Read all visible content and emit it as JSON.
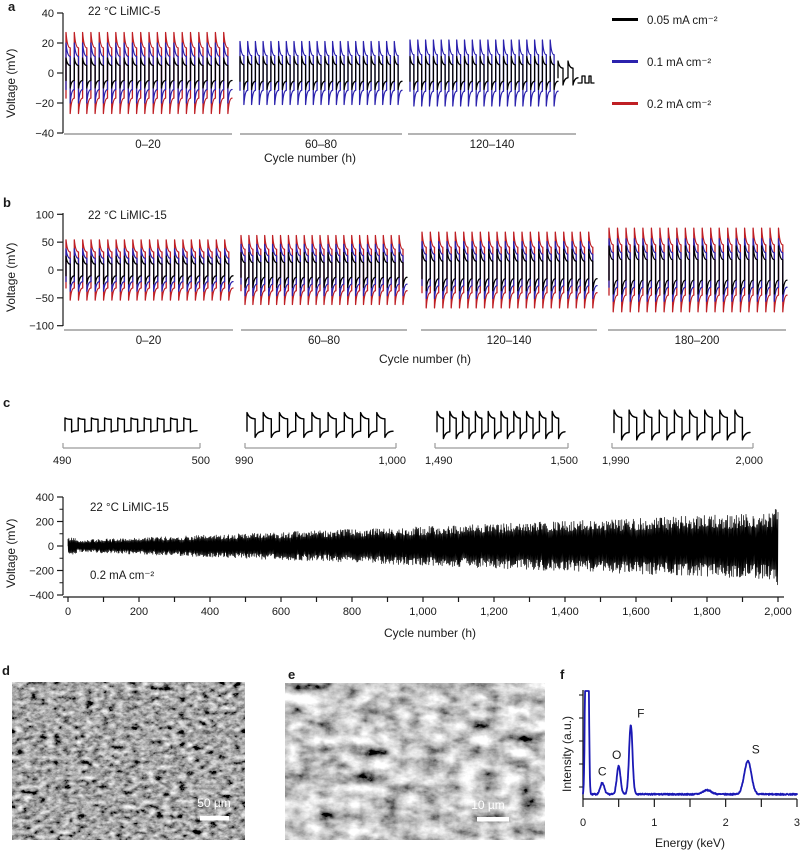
{
  "panels": {
    "a": {
      "letter": "a",
      "title": "22 °C LiMIC-5",
      "ylabel": "Voltage (mV)",
      "xlabel": "Cycle number (h)"
    },
    "b": {
      "letter": "b",
      "title": "22 °C LiMIC-15",
      "ylabel": "Voltage (mV)",
      "xlabel": "Cycle number (h)"
    },
    "c": {
      "letter": "c",
      "title": "22 °C LiMIC-15",
      "current_label": "0.2 mA cm⁻²",
      "ylabel": "Voltage (mV)",
      "xlabel": "Cycle number (h)"
    },
    "d": {
      "letter": "d",
      "scale_label": "50 µm"
    },
    "e": {
      "letter": "e",
      "scale_label": "10 µm"
    },
    "f": {
      "letter": "f",
      "ylabel": "Intensity (a.u.)",
      "xlabel": "Energy (keV)"
    }
  },
  "legend": {
    "items": [
      {
        "label": "0.05 mA cm⁻²",
        "color": "#000000"
      },
      {
        "label": "0.1 mA cm⁻²",
        "color": "#2b22ad"
      },
      {
        "label": "0.2 mA cm⁻²",
        "color": "#bf1f24"
      }
    ]
  },
  "colors": {
    "black": "#000000",
    "blue": "#2b22ad",
    "red": "#bf1f24",
    "eds_blue": "#1b19b5",
    "axis": "#1a1a1a",
    "segment_line": "#9b9b9b"
  },
  "chart_data": [
    {
      "id": "a",
      "type": "line",
      "title": "22 °C LiMIC-5",
      "xlabel": "Cycle number (h)",
      "ylabel": "Voltage (mV)",
      "ylim": [
        -40,
        40
      ],
      "yticks": [
        {
          "v": 40,
          "label": "40"
        },
        {
          "v": 20,
          "label": "20"
        },
        {
          "v": 0,
          "label": "0"
        },
        {
          "v": -20,
          "label": "−20"
        },
        {
          "v": -40,
          "label": "−40"
        }
      ],
      "segments": [
        {
          "label": "0–20",
          "cycles": 20,
          "series": [
            {
              "name": "0.2 mA cm⁻²",
              "color_key": "red",
              "amp_mV": 27,
              "relax": 0.62
            },
            {
              "name": "0.1 mA cm⁻²",
              "color_key": "blue",
              "amp_mV": 20,
              "relax": 0.55
            },
            {
              "name": "0.05 mA cm⁻²",
              "color_key": "black",
              "amp_mV": 10,
              "relax": 0.5
            }
          ]
        },
        {
          "label": "60–80",
          "cycles": 21,
          "series": [
            {
              "name": "0.1 mA cm⁻²",
              "color_key": "blue",
              "amp_mV": 21,
              "relax": 0.55
            },
            {
              "name": "0.05 mA cm⁻²",
              "color_key": "black",
              "amp_mV": 11,
              "relax": 0.5
            }
          ]
        },
        {
          "label": "120–140",
          "cycles": 19,
          "tail": true,
          "series": [
            {
              "name": "0.1 mA cm⁻²",
              "color_key": "blue",
              "amp_mV": 22,
              "relax": 0.55
            },
            {
              "name": "0.05 mA cm⁻²",
              "color_key": "black",
              "amp_mV": 11,
              "relax": 0.5
            }
          ]
        }
      ]
    },
    {
      "id": "b",
      "type": "line",
      "title": "22 °C LiMIC-15",
      "xlabel": "Cycle number (h)",
      "ylabel": "Voltage (mV)",
      "ylim": [
        -100,
        100
      ],
      "yticks": [
        {
          "v": 100,
          "label": "100"
        },
        {
          "v": 50,
          "label": "50"
        },
        {
          "v": 0,
          "label": "0"
        },
        {
          "v": -50,
          "label": "−50"
        },
        {
          "v": -100,
          "label": "−100"
        }
      ],
      "segments": [
        {
          "label": "0–20",
          "cycles": 20,
          "series": [
            {
              "name": "0.2 mA cm⁻²",
              "color_key": "red",
              "amp_mV": 54,
              "relax": 0.6
            },
            {
              "name": "0.1 mA cm⁻²",
              "color_key": "blue",
              "amp_mV": 38,
              "relax": 0.55
            },
            {
              "name": "0.05 mA cm⁻²",
              "color_key": "black",
              "amp_mV": 25,
              "relax": 0.42
            }
          ]
        },
        {
          "label": "60–80",
          "cycles": 21,
          "series": [
            {
              "name": "0.2 mA cm⁻²",
              "color_key": "red",
              "amp_mV": 62,
              "relax": 0.6
            },
            {
              "name": "0.1 mA cm⁻²",
              "color_key": "blue",
              "amp_mV": 46,
              "relax": 0.55
            },
            {
              "name": "0.05 mA cm⁻²",
              "color_key": "black",
              "amp_mV": 31,
              "relax": 0.42
            }
          ]
        },
        {
          "label": "120–140",
          "cycles": 21,
          "series": [
            {
              "name": "0.2 mA cm⁻²",
              "color_key": "red",
              "amp_mV": 68,
              "relax": 0.6
            },
            {
              "name": "0.1 mA cm⁻²",
              "color_key": "blue",
              "amp_mV": 51,
              "relax": 0.55
            },
            {
              "name": "0.05 mA cm⁻²",
              "color_key": "black",
              "amp_mV": 37,
              "relax": 0.42
            }
          ]
        },
        {
          "label": "180–200",
          "cycles": 21,
          "series": [
            {
              "name": "0.2 mA cm⁻²",
              "color_key": "red",
              "amp_mV": 75,
              "relax": 0.6
            },
            {
              "name": "0.1 mA cm⁻²",
              "color_key": "blue",
              "amp_mV": 56,
              "relax": 0.55
            },
            {
              "name": "0.05 mA cm⁻²",
              "color_key": "black",
              "amp_mV": 43,
              "relax": 0.42
            }
          ]
        }
      ]
    },
    {
      "id": "c_insets",
      "type": "line",
      "insets": [
        {
          "labels": [
            "490",
            "500"
          ],
          "cycles": 10,
          "amp_mV": 55,
          "relax": 0.8
        },
        {
          "labels": [
            "990",
            "1,000"
          ],
          "cycles": 9,
          "amp_mV": 95,
          "relax": 0.5
        },
        {
          "labels": [
            "1,490",
            "1,500"
          ],
          "cycles": 10,
          "amp_mV": 105,
          "relax": 0.5
        },
        {
          "labels": [
            "1,990",
            "2,000"
          ],
          "cycles": 9,
          "amp_mV": 115,
          "relax": 0.5
        }
      ]
    },
    {
      "id": "c",
      "type": "line",
      "title": "22 °C LiMIC-15",
      "annotation": "0.2 mA cm⁻²",
      "xlabel": "Cycle number (h)",
      "ylabel": "Voltage (mV)",
      "xlim": [
        0,
        2000
      ],
      "ylim": [
        -400,
        400
      ],
      "yticks": [
        {
          "v": 400,
          "label": "400"
        },
        {
          "v": 200,
          "label": "200"
        },
        {
          "v": 0,
          "label": "0"
        },
        {
          "v": -200,
          "label": "−200"
        },
        {
          "v": -400,
          "label": "−400"
        }
      ],
      "ytick_minor_step": 100,
      "xticks": [
        {
          "v": 0,
          "label": "0"
        },
        {
          "v": 200,
          "label": "200"
        },
        {
          "v": 400,
          "label": "400"
        },
        {
          "v": 600,
          "label": "600"
        },
        {
          "v": 800,
          "label": "800"
        },
        {
          "v": 1000,
          "label": "1,000"
        },
        {
          "v": 1200,
          "label": "1,200"
        },
        {
          "v": 1400,
          "label": "1,400"
        },
        {
          "v": 1600,
          "label": "1,600"
        },
        {
          "v": 1800,
          "label": "1,800"
        },
        {
          "v": 2000,
          "label": "2,000"
        }
      ],
      "xtick_minor_step": 100,
      "envelope_mV": {
        "start": 35,
        "end": 210,
        "final_spike": 260
      }
    },
    {
      "id": "f",
      "type": "line",
      "xlabel": "Energy (keV)",
      "ylabel": "Intensity (a.u.)",
      "xlim": [
        0,
        3
      ],
      "xticks": [
        {
          "v": 0,
          "label": "0"
        },
        {
          "v": 1,
          "label": "1"
        },
        {
          "v": 2,
          "label": "2"
        },
        {
          "v": 3,
          "label": "3"
        }
      ],
      "xtick_minor": [
        0.5,
        1.5,
        2.5
      ],
      "zero_peak": {
        "energy_keV": 0.055,
        "clipped": true
      },
      "peaks": [
        {
          "element": "C",
          "energy_keV": 0.27,
          "height_rel": 0.11,
          "sigma_keV": 0.028,
          "label_dx": 0
        },
        {
          "element": "O",
          "energy_keV": 0.5,
          "height_rel": 0.27,
          "sigma_keV": 0.026,
          "label_dx": -2
        },
        {
          "element": "F",
          "energy_keV": 0.67,
          "height_rel": 0.67,
          "sigma_keV": 0.024,
          "label_dx": 10
        },
        {
          "element": "S",
          "energy_keV": 2.31,
          "height_rel": 0.32,
          "sigma_keV": 0.05,
          "label_dx": 8
        }
      ],
      "minor_bump": {
        "energy_keV": 1.74,
        "height_rel": 0.04,
        "sigma_keV": 0.06
      }
    }
  ]
}
